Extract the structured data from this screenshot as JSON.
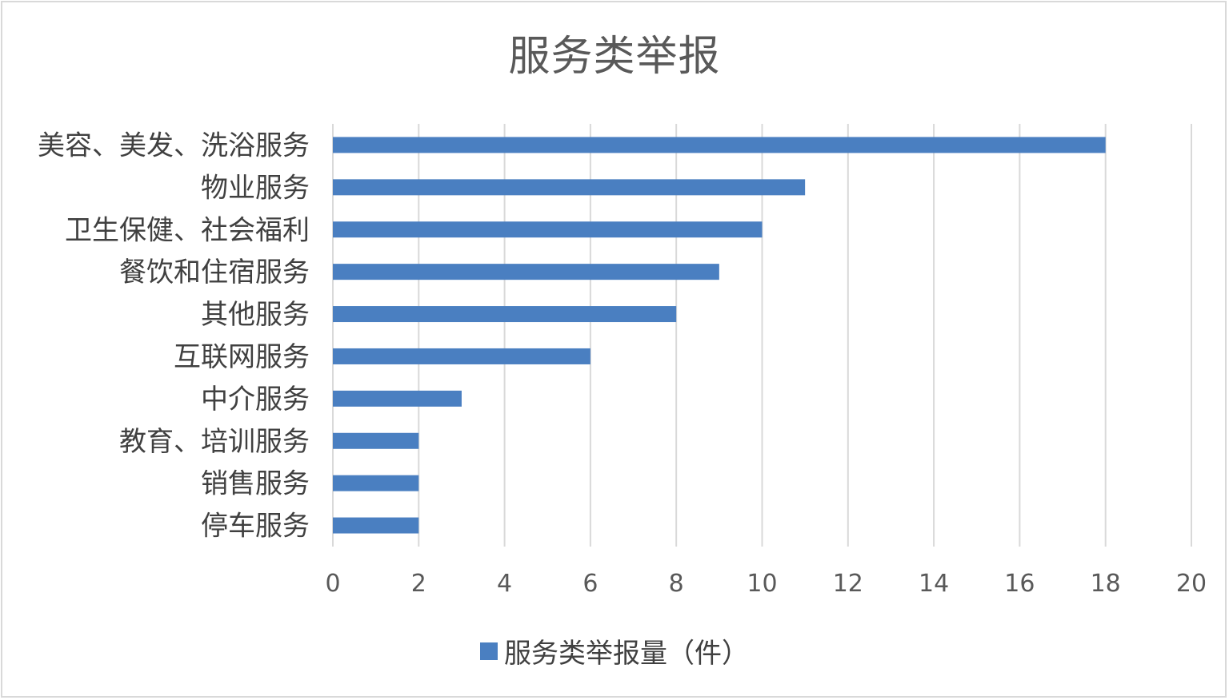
{
  "chart_data": {
    "type": "bar",
    "orientation": "horizontal",
    "title": "服务类举报",
    "categories": [
      "美容、美发、洗浴服务",
      "物业服务",
      "卫生保健、社会福利",
      "餐饮和住宿服务",
      "其他服务",
      "互联网服务",
      "中介服务",
      "教育、培训服务",
      "销售服务",
      "停车服务"
    ],
    "series": [
      {
        "name": "服务类举报量（件）",
        "values": [
          18,
          11,
          10,
          9,
          8,
          6,
          3,
          2,
          2,
          2
        ],
        "color": "#4a7fc1"
      }
    ],
    "xlim": [
      0,
      20
    ],
    "xticks": [
      0,
      2,
      4,
      6,
      8,
      10,
      12,
      14,
      16,
      18,
      20
    ],
    "grid": "vertical",
    "legend_position": "bottom",
    "xlabel": "",
    "ylabel": ""
  }
}
